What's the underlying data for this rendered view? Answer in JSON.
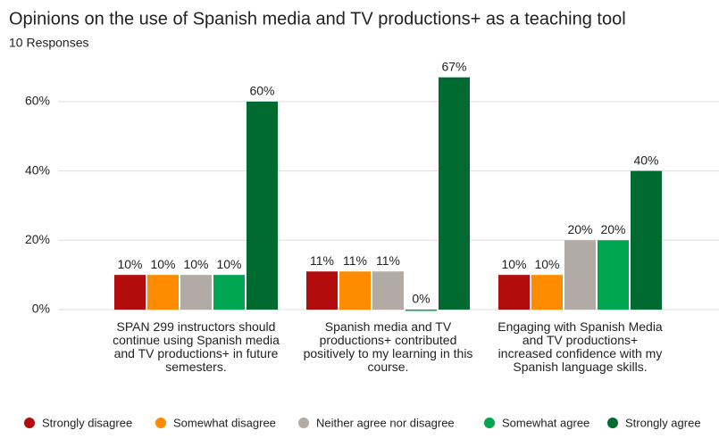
{
  "chart_data": {
    "type": "bar",
    "title": "Opinions on the use of Spanish media and TV productions+ as a teaching tool",
    "subtitle": "10 Responses",
    "categories": [
      "SPAN 299 instructors should continue using Spanish media and TV productions+ in future semesters.",
      "Spanish media and TV productions+ contributed positively to my learning in this course.",
      "Engaging with Spanish Media and TV productions+ increased confidence with my Spanish language skills."
    ],
    "series": [
      {
        "name": "Strongly disagree",
        "color": "#b30c0c",
        "values": [
          10,
          11,
          10
        ],
        "value_labels": [
          "10%",
          "11%",
          "10%"
        ]
      },
      {
        "name": "Somewhat disagree",
        "color": "#ff8c00",
        "values": [
          10,
          11,
          10
        ],
        "value_labels": [
          "10%",
          "11%",
          "10%"
        ]
      },
      {
        "name": "Neither agree nor disagree",
        "color": "#b2aaa5",
        "values": [
          10,
          11,
          20
        ],
        "value_labels": [
          "10%",
          "11%",
          "20%"
        ]
      },
      {
        "name": "Somewhat agree",
        "color": "#00a651",
        "values": [
          10,
          0,
          20
        ],
        "value_labels": [
          "10%",
          "0%",
          "20%"
        ]
      },
      {
        "name": "Strongly agree",
        "color": "#006b31",
        "values": [
          60,
          67,
          40
        ],
        "value_labels": [
          "60%",
          "67%",
          "40%"
        ]
      }
    ],
    "ylim": [
      0,
      70
    ],
    "yticks": [
      {
        "value": 0,
        "label": "0%"
      },
      {
        "value": 20,
        "label": "20%"
      },
      {
        "value": 40,
        "label": "40%"
      },
      {
        "value": 60,
        "label": "60%"
      }
    ],
    "grid": true,
    "legend": "bottom"
  }
}
